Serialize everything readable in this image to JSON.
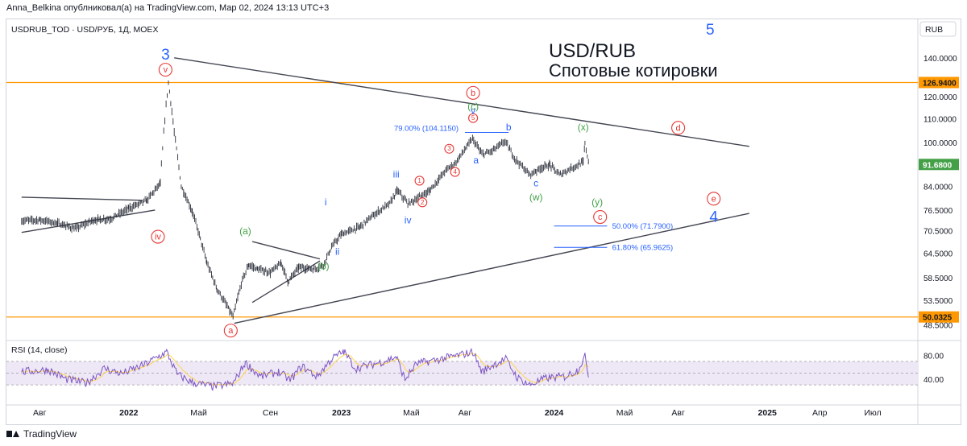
{
  "header": {
    "published_line": "Anna_Belkina опублниковал(а) на TradingView.com, Мар 02, 2024 13:13 UTC+3"
  },
  "footer": {
    "brand": "TradingView"
  },
  "colors": {
    "price": "#2a2e39",
    "orange": "#ff9800",
    "rsi_line": "#7e57c2",
    "rsi_ma": "#ffd54f",
    "rsi_band": "#ede7f6",
    "blue_label": "#2962ff",
    "green_label": "#43a047",
    "red_label": "#e53935",
    "trendline": "#434651",
    "price_tag_green": "#43a047"
  },
  "chart_data": [
    {
      "type": "candlestick",
      "symbol_header": "USDRUB_TOD · USD/РУБ, 1Д, MOEX",
      "currency_button": "RUB",
      "title": "USD/RUB",
      "subtitle": "Спотовые котировки",
      "price_scale": "log",
      "y_ticks": [
        140.0,
        120.0,
        110.0,
        100.0,
        84.0,
        76.5,
        70.5,
        64.5,
        58.5,
        53.5,
        48.5
      ],
      "y_tick_labels": [
        "140.0000",
        "120.0000",
        "110.0000",
        "100.0000",
        "84.0000",
        "76.5000",
        "70.5000",
        "64.5000",
        "58.5000",
        "53.5000",
        "48.5000"
      ],
      "x_tick_labels": [
        "Авг",
        "2022",
        "Май",
        "Сен",
        "2023",
        "Май",
        "Авг",
        "2024",
        "Май",
        "Авг",
        "2025",
        "Апр",
        "Июл"
      ],
      "x_tick_dates": [
        "2021-08-01",
        "2022-01-01",
        "2022-05-01",
        "2022-09-01",
        "2023-01-01",
        "2023-05-01",
        "2023-08-01",
        "2024-01-01",
        "2024-05-01",
        "2024-08-01",
        "2025-01-01",
        "2025-04-01",
        "2025-07-01"
      ],
      "close_path": [
        [
          "2021-07-01",
          73.3
        ],
        [
          "2021-08-01",
          73.6
        ],
        [
          "2021-09-01",
          72.6
        ],
        [
          "2021-10-01",
          71.0
        ],
        [
          "2021-11-01",
          73.5
        ],
        [
          "2021-12-01",
          73.9
        ],
        [
          "2022-01-01",
          77.0
        ],
        [
          "2022-02-01",
          79.5
        ],
        [
          "2022-02-24",
          85.0
        ],
        [
          "2022-03-04",
          110.0
        ],
        [
          "2022-03-10",
          126.9
        ],
        [
          "2022-03-20",
          104.0
        ],
        [
          "2022-04-01",
          84.0
        ],
        [
          "2022-04-20",
          76.0
        ],
        [
          "2022-05-15",
          62.0
        ],
        [
          "2022-06-01",
          56.0
        ],
        [
          "2022-06-29",
          50.0
        ],
        [
          "2022-07-15",
          58.0
        ],
        [
          "2022-07-26",
          61.5
        ],
        [
          "2022-08-10",
          60.5
        ],
        [
          "2022-09-01",
          59.7
        ],
        [
          "2022-09-20",
          62.0
        ],
        [
          "2022-10-01",
          57.5
        ],
        [
          "2022-10-20",
          61.0
        ],
        [
          "2022-11-15",
          60.5
        ],
        [
          "2022-12-01",
          61.5
        ],
        [
          "2022-12-15",
          66.0
        ],
        [
          "2023-01-01",
          69.5
        ],
        [
          "2023-02-01",
          71.5
        ],
        [
          "2023-03-01",
          75.5
        ],
        [
          "2023-03-25",
          78.5
        ],
        [
          "2023-04-07",
          82.7
        ],
        [
          "2023-04-25",
          78.5
        ],
        [
          "2023-05-01",
          79.0
        ],
        [
          "2023-06-01",
          82.5
        ],
        [
          "2023-07-01",
          90.0
        ],
        [
          "2023-07-15",
          92.0
        ],
        [
          "2023-08-14",
          101.5
        ],
        [
          "2023-08-30",
          95.5
        ],
        [
          "2023-09-15",
          96.5
        ],
        [
          "2023-10-09",
          100.5
        ],
        [
          "2023-10-25",
          94.0
        ],
        [
          "2023-11-20",
          88.0
        ],
        [
          "2023-12-10",
          90.5
        ],
        [
          "2023-12-25",
          91.5
        ],
        [
          "2024-01-10",
          88.0
        ],
        [
          "2024-02-01",
          90.5
        ],
        [
          "2024-02-20",
          92.5
        ],
        [
          "2024-02-23",
          99.5
        ],
        [
          "2024-03-01",
          91.68
        ]
      ],
      "horizontal_levels": [
        {
          "label": "126.9400",
          "value": 126.94,
          "color": "#ff9800"
        },
        {
          "label": "50.0325",
          "value": 50.0325,
          "color": "#ff9800"
        }
      ],
      "last_price_label": "91.6800",
      "trendlines": [
        {
          "from": [
            "2022-03-20",
            140.0
          ],
          "to": [
            "2024-12-01",
            98.5
          ]
        },
        {
          "from": [
            "2022-07-01",
            48.8
          ],
          "to": [
            "2024-12-01",
            75.5
          ]
        },
        {
          "from": [
            "2021-07-01",
            80.5
          ],
          "to": [
            "2022-01-25",
            79.5
          ]
        },
        {
          "from": [
            "2021-07-01",
            70.0
          ],
          "to": [
            "2022-02-15",
            76.5
          ]
        },
        {
          "from": [
            "2022-08-01",
            67.5
          ],
          "to": [
            "2022-11-25",
            63.0
          ]
        },
        {
          "from": [
            "2022-08-01",
            53.0
          ],
          "to": [
            "2022-11-25",
            62.5
          ]
        }
      ],
      "fib_levels": [
        {
          "label": "79.00% (104.1150)",
          "value": 104.115,
          "from": "2023-08-01",
          "to": "2023-10-15",
          "label_side": "left"
        },
        {
          "label": "50.00% (71.7900)",
          "value": 71.79,
          "from": "2024-01-01",
          "to": "2024-04-01",
          "label_side": "right"
        },
        {
          "label": "61.80% (65.9625)",
          "value": 65.9625,
          "from": "2024-01-01",
          "to": "2024-04-01",
          "label_side": "right"
        }
      ],
      "wave_labels": [
        {
          "text": "3",
          "style": "blue-large",
          "at": [
            "2022-03-05",
            139.0
          ]
        },
        {
          "text": "v",
          "style": "red-circle",
          "at": [
            "2022-03-05",
            131.0
          ]
        },
        {
          "text": "iv",
          "style": "red-circle",
          "at": [
            "2022-02-20",
            67.5
          ]
        },
        {
          "text": "(a)",
          "style": "green",
          "at": [
            "2022-07-20",
            69.5
          ]
        },
        {
          "text": "a",
          "style": "red-circle",
          "at": [
            "2022-06-25",
            46.5
          ]
        },
        {
          "text": "(b)",
          "style": "green",
          "at": [
            "2022-12-01",
            60.5
          ]
        },
        {
          "text": "i",
          "style": "blue",
          "at": [
            "2022-12-05",
            78.0
          ]
        },
        {
          "text": "ii",
          "style": "blue",
          "at": [
            "2022-12-25",
            64.0
          ]
        },
        {
          "text": "iii",
          "style": "blue",
          "at": [
            "2023-04-05",
            87.0
          ]
        },
        {
          "text": "iv",
          "style": "blue",
          "at": [
            "2023-04-25",
            72.5
          ]
        },
        {
          "text": "1",
          "style": "red-circle-small",
          "at": [
            "2023-05-15",
            85.0
          ]
        },
        {
          "text": "2",
          "style": "red-circle-small",
          "at": [
            "2023-05-20",
            78.0
          ]
        },
        {
          "text": "3",
          "style": "red-circle-small",
          "at": [
            "2023-07-05",
            96.5
          ]
        },
        {
          "text": "4",
          "style": "red-circle-small",
          "at": [
            "2023-07-15",
            88.0
          ]
        },
        {
          "text": "5",
          "style": "red-circle-small",
          "at": [
            "2023-08-15",
            109.0
          ]
        },
        {
          "text": "(c)",
          "style": "green",
          "at": [
            "2023-08-15",
            114.0
          ]
        },
        {
          "text": "v",
          "style": "blue",
          "at": [
            "2023-08-15",
            112.0
          ]
        },
        {
          "text": "b",
          "style": "red-circle",
          "at": [
            "2023-08-15",
            119.5
          ]
        },
        {
          "text": "a",
          "style": "blue",
          "at": [
            "2023-08-20",
            92.0
          ]
        },
        {
          "text": "b",
          "style": "blue",
          "at": [
            "2023-10-15",
            105.0
          ]
        },
        {
          "text": "c",
          "style": "blue",
          "at": [
            "2023-12-01",
            84.0
          ]
        },
        {
          "text": "(w)",
          "style": "green",
          "at": [
            "2023-12-01",
            79.5
          ]
        },
        {
          "text": "(x)",
          "style": "green",
          "at": [
            "2024-02-20",
            105.0
          ]
        },
        {
          "text": "(y)",
          "style": "green",
          "at": [
            "2024-03-15",
            78.0
          ]
        },
        {
          "text": "c",
          "style": "red-circle",
          "at": [
            "2024-03-20",
            73.0
          ]
        },
        {
          "text": "d",
          "style": "red-circle",
          "at": [
            "2024-08-01",
            104.0
          ]
        },
        {
          "text": "e",
          "style": "red-circle",
          "at": [
            "2024-10-01",
            78.5
          ]
        },
        {
          "text": "4",
          "style": "blue-large",
          "at": [
            "2024-10-01",
            73.0
          ]
        },
        {
          "text": "5",
          "style": "blue-large",
          "at": [
            "2024-09-25",
            153.5
          ]
        }
      ]
    },
    {
      "type": "line",
      "title": "RSI (14, close)",
      "y_ticks": [
        80.0,
        40.0
      ],
      "y_tick_labels": [
        "80.00",
        "40.00"
      ],
      "band": [
        30,
        70
      ],
      "mid": 50,
      "rsi_path": [
        [
          "2021-07-01",
          52
        ],
        [
          "2021-08-15",
          56
        ],
        [
          "2021-09-15",
          40
        ],
        [
          "2021-10-20",
          33
        ],
        [
          "2021-11-20",
          58
        ],
        [
          "2021-12-20",
          49
        ],
        [
          "2022-01-25",
          63
        ],
        [
          "2022-03-07",
          86
        ],
        [
          "2022-03-25",
          48
        ],
        [
          "2022-04-20",
          34
        ],
        [
          "2022-05-25",
          27
        ],
        [
          "2022-06-29",
          32
        ],
        [
          "2022-07-20",
          68
        ],
        [
          "2022-08-15",
          44
        ],
        [
          "2022-09-15",
          52
        ],
        [
          "2022-10-05",
          38
        ],
        [
          "2022-10-25",
          62
        ],
        [
          "2022-11-20",
          44
        ],
        [
          "2022-12-15",
          74
        ],
        [
          "2023-01-05",
          87
        ],
        [
          "2023-01-25",
          58
        ],
        [
          "2023-02-20",
          64
        ],
        [
          "2023-03-15",
          70
        ],
        [
          "2023-04-05",
          78
        ],
        [
          "2023-04-20",
          39
        ],
        [
          "2023-05-10",
          66
        ],
        [
          "2023-06-15",
          73
        ],
        [
          "2023-07-15",
          79
        ],
        [
          "2023-08-15",
          86
        ],
        [
          "2023-08-30",
          52
        ],
        [
          "2023-09-20",
          65
        ],
        [
          "2023-10-10",
          74
        ],
        [
          "2023-10-30",
          42
        ],
        [
          "2023-11-20",
          30
        ],
        [
          "2023-12-20",
          42
        ],
        [
          "2024-01-20",
          44
        ],
        [
          "2024-02-10",
          55
        ],
        [
          "2024-02-23",
          78
        ],
        [
          "2024-03-01",
          44
        ]
      ]
    }
  ]
}
